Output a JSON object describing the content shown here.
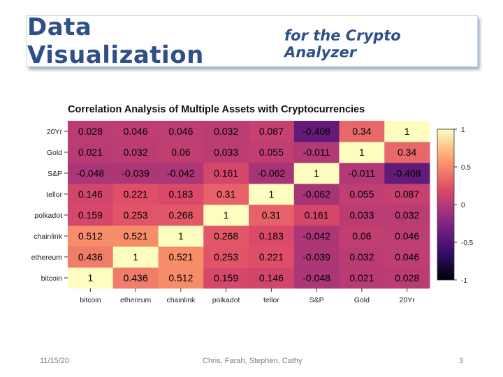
{
  "slide": {
    "title_main": "Data Visualization",
    "title_sub": "for the Crypto Analyzer",
    "footer_date": "11/15/20",
    "footer_names": "Chris, Farah, Stephen, Cathy",
    "footer_page": "3"
  },
  "chart_data": {
    "type": "heatmap",
    "title": "Correlation Analysis of Multiple Assets with Cryptocurrencies",
    "x_categories": [
      "bitcoin",
      "ethereum",
      "chainlink",
      "polkadot",
      "tellor",
      "S&P",
      "Gold",
      "20Yr"
    ],
    "y_categories": [
      "bitcoin",
      "ethereum",
      "chainlink",
      "polkadot",
      "tellor",
      "S&P",
      "Gold",
      "20Yr"
    ],
    "values": [
      [
        1,
        0.436,
        0.512,
        0.159,
        0.146,
        -0.048,
        0.021,
        0.028
      ],
      [
        0.436,
        1,
        0.521,
        0.253,
        0.221,
        -0.039,
        0.032,
        0.046
      ],
      [
        0.512,
        0.521,
        1,
        0.268,
        0.183,
        -0.042,
        0.06,
        0.046
      ],
      [
        0.159,
        0.253,
        0.268,
        1,
        0.31,
        0.161,
        0.033,
        0.032
      ],
      [
        0.146,
        0.221,
        0.183,
        0.31,
        1,
        -0.062,
        0.055,
        0.087
      ],
      [
        -0.048,
        -0.039,
        -0.042,
        0.161,
        -0.062,
        1,
        -0.011,
        -0.408
      ],
      [
        0.021,
        0.032,
        0.06,
        0.033,
        0.055,
        -0.011,
        1,
        0.34
      ],
      [
        0.028,
        0.046,
        0.046,
        0.032,
        0.087,
        -0.408,
        0.34,
        1
      ]
    ],
    "colorbar_range": [
      -1,
      1
    ],
    "colorbar_ticks": [
      "1",
      "0.5",
      "0",
      "-0.5",
      "-1"
    ],
    "colormap": "inferno",
    "colorscale": [
      "#000004",
      "#3b0f70",
      "#8c2981",
      "#dd4a68",
      "#fd9f6b",
      "#fcfdbf"
    ]
  }
}
